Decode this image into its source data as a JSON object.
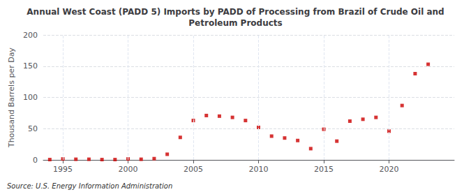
{
  "chart_data": {
    "type": "scatter",
    "title": "Annual West Coast (PADD 5) Imports by PADD of Processing from Brazil of Crude Oil and\nPetroleum Products",
    "ylabel": "Thousand Barrels per Day",
    "annotations": [
      "Source: U.S. Energy Information Administration"
    ],
    "x": [
      1994,
      1995,
      1996,
      1997,
      1998,
      1999,
      2000,
      2001,
      2002,
      2003,
      2004,
      2005,
      2006,
      2007,
      2008,
      2009,
      2010,
      2011,
      2012,
      2013,
      2014,
      2015,
      2016,
      2017,
      2018,
      2019,
      2020,
      2021,
      2022,
      2023
    ],
    "values": [
      0.5,
      1.5,
      1.0,
      1.0,
      0.5,
      0.5,
      1.5,
      1.0,
      2.0,
      9.0,
      36.0,
      63.0,
      71.0,
      70.0,
      68.0,
      63.0,
      52.0,
      38.0,
      35.0,
      31.0,
      18.0,
      49.0,
      30.0,
      62.0,
      65.0,
      68.0,
      46.0,
      87.0,
      138.0,
      153.0
    ],
    "color": "#cc0000",
    "marker": "square",
    "xlim": [
      1993.5,
      2025.0
    ],
    "xticks": [
      1995,
      2000,
      2005,
      2010,
      2015,
      2020
    ],
    "ylim": [
      0,
      200
    ],
    "yticks": [
      0,
      50,
      100,
      150,
      200
    ],
    "grid": true
  }
}
